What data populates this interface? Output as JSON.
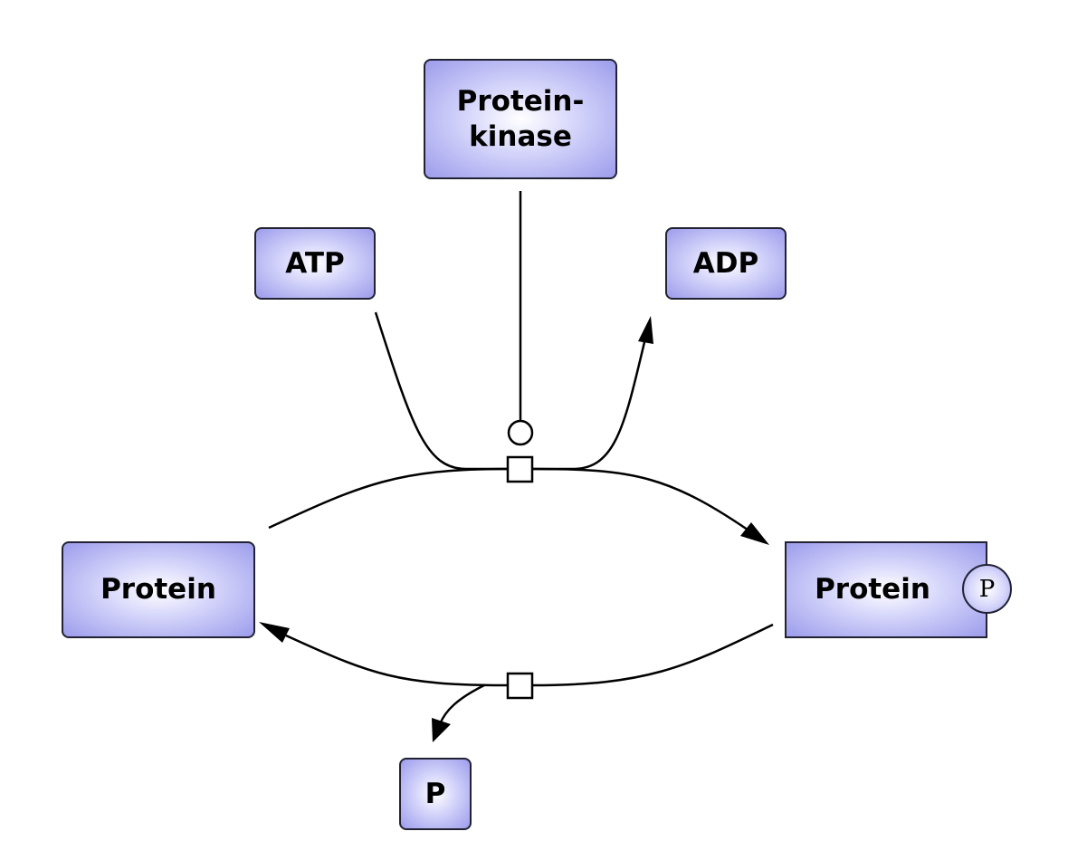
{
  "nodes": {
    "kinase": "Protein-\nkinase",
    "atp": "ATP",
    "adp": "ADP",
    "protein": "Protein",
    "protein_phosphorylated": "Protein",
    "phosphate": "P"
  },
  "state_variable": "P",
  "colors": {
    "node_fill": "#9c9cec",
    "node_highlight": "#ffffff",
    "stroke": "#000000"
  }
}
